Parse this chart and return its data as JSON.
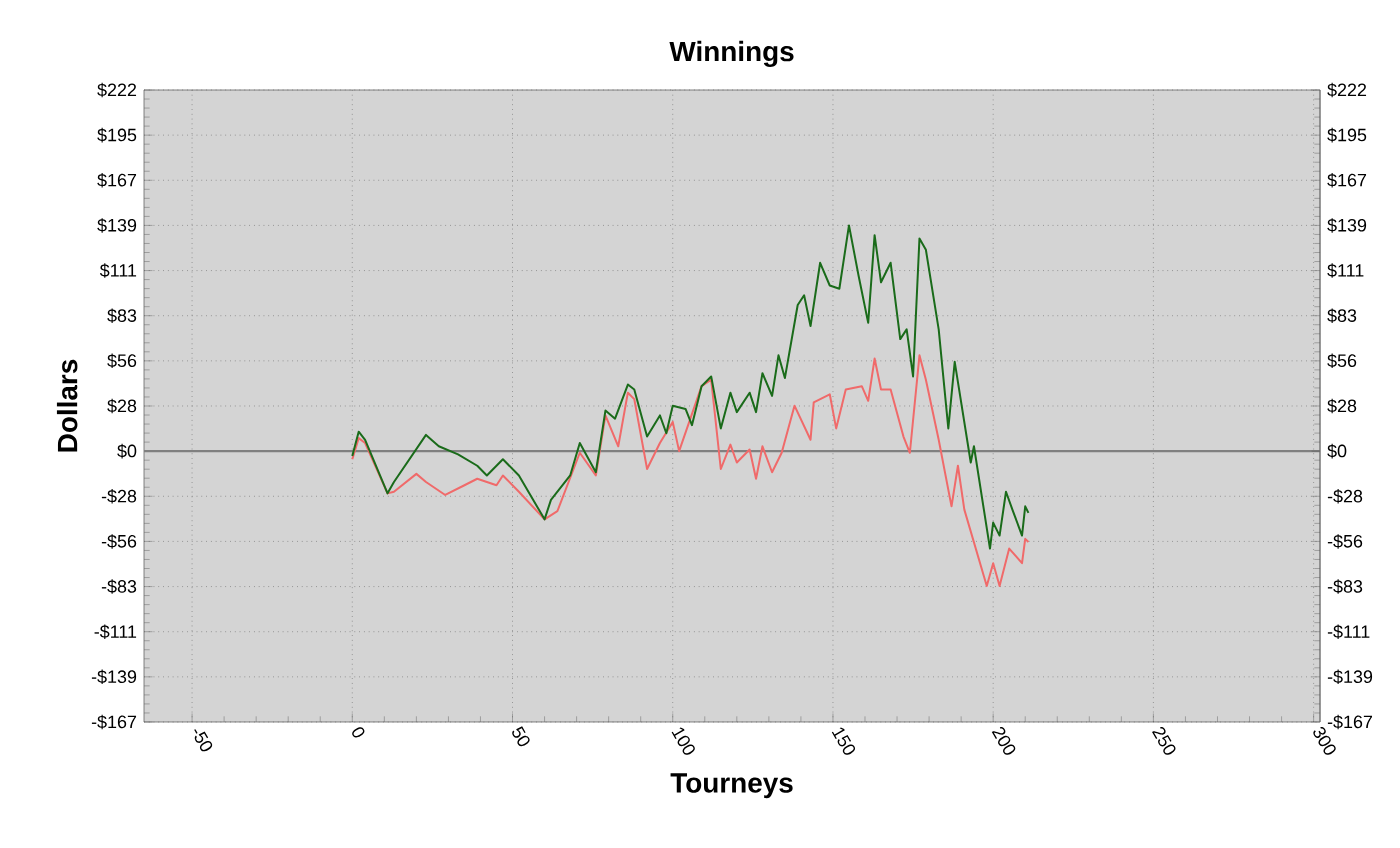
{
  "chart_data": {
    "type": "line",
    "title": "Winnings",
    "xlabel": "Tourneys",
    "ylabel": "Dollars",
    "xlim": [
      -65,
      302
    ],
    "xticks": [
      -50,
      0,
      50,
      100,
      150,
      200,
      250,
      300
    ],
    "ylim": [
      -166.8,
      222.4
    ],
    "yticks": [
      {
        "value": -166.8,
        "label": "-$167"
      },
      {
        "value": -139,
        "label": "-$139"
      },
      {
        "value": -111.2,
        "label": "-$111"
      },
      {
        "value": -83.4,
        "label": "-$83"
      },
      {
        "value": -55.6,
        "label": "-$56"
      },
      {
        "value": -27.8,
        "label": "-$28"
      },
      {
        "value": 0,
        "label": "$0"
      },
      {
        "value": 27.8,
        "label": "$28"
      },
      {
        "value": 55.6,
        "label": "$56"
      },
      {
        "value": 83.4,
        "label": "$83"
      },
      {
        "value": 111.2,
        "label": "$111"
      },
      {
        "value": 139,
        "label": "$139"
      },
      {
        "value": 166.8,
        "label": "$167"
      },
      {
        "value": 194.6,
        "label": "$195"
      },
      {
        "value": 222.4,
        "label": "$222"
      }
    ],
    "y2lim": [
      -166.8,
      222.4
    ],
    "y2ticks": [
      {
        "value": -166.8,
        "label": "-$167"
      },
      {
        "value": -139,
        "label": "-$139"
      },
      {
        "value": -111.2,
        "label": "-$111"
      },
      {
        "value": -83.4,
        "label": "-$83"
      },
      {
        "value": -55.6,
        "label": "-$56"
      },
      {
        "value": -27.8,
        "label": "-$28"
      },
      {
        "value": 0,
        "label": "$0"
      },
      {
        "value": 27.8,
        "label": "$28"
      },
      {
        "value": 55.6,
        "label": "$56"
      },
      {
        "value": 83.4,
        "label": "$83"
      },
      {
        "value": 111.2,
        "label": "$111"
      },
      {
        "value": 139,
        "label": "$139"
      },
      {
        "value": 166.8,
        "label": "$167"
      },
      {
        "value": 194.6,
        "label": "$195"
      },
      {
        "value": 222.4,
        "label": "$222"
      }
    ],
    "grid": true,
    "marker": "none",
    "line_style": "solid",
    "ref_lines": [
      {
        "axis": "y",
        "value": 0,
        "color": "#808080"
      }
    ],
    "series": [
      {
        "color": "#f06a6a",
        "x": [
          0,
          2,
          4,
          11,
          13,
          20,
          23,
          29,
          35,
          39,
          45,
          47,
          52,
          60,
          64,
          71,
          76,
          79,
          83,
          86,
          88,
          92,
          96,
          100,
          102,
          109,
          112,
          115,
          118,
          120,
          124,
          126,
          128,
          131,
          134,
          138,
          143,
          144,
          149,
          151,
          154,
          159,
          161,
          163,
          165,
          168,
          172,
          174,
          177,
          179,
          183,
          187,
          189,
          191,
          198,
          200,
          202,
          205,
          209,
          210,
          211
        ],
        "values": [
          -5,
          8,
          5,
          -26,
          -25,
          -14,
          -19,
          -27,
          -21,
          -17,
          -21,
          -15,
          -25,
          -42,
          -37,
          -1,
          -15,
          22,
          3,
          36,
          32,
          -11,
          5,
          18,
          0,
          40,
          44,
          -11,
          4,
          -7,
          1,
          -17,
          3,
          -13,
          -1,
          28,
          7,
          30,
          35,
          14,
          38,
          40,
          31,
          57,
          38,
          38,
          9,
          -1,
          59,
          44,
          7,
          -34,
          -9,
          -36,
          -83,
          -69,
          -83,
          -60,
          -69,
          -54,
          -56
        ]
      },
      {
        "color": "#1a6b1a",
        "x": [
          0,
          2,
          4,
          11,
          13,
          23,
          27,
          33,
          39,
          42,
          47,
          52,
          60,
          62,
          68,
          71,
          76,
          79,
          82,
          86,
          88,
          92,
          96,
          98,
          100,
          104,
          106,
          109,
          112,
          115,
          118,
          120,
          124,
          126,
          128,
          131,
          133,
          135,
          139,
          141,
          143,
          146,
          149,
          152,
          155,
          158,
          161,
          163,
          165,
          168,
          171,
          173,
          175,
          177,
          179,
          183,
          186,
          188,
          193,
          194,
          199,
          200,
          202,
          204,
          206,
          209,
          210,
          211
        ],
        "values": [
          -3,
          12,
          7,
          -26,
          -19,
          10,
          3,
          -2,
          -9,
          -15,
          -5,
          -15,
          -42,
          -30,
          -15,
          5,
          -13,
          25,
          20,
          41,
          38,
          9,
          22,
          11,
          28,
          26,
          16,
          40,
          46,
          14,
          36,
          24,
          36,
          24,
          48,
          34,
          59,
          45,
          90,
          96,
          77,
          116,
          102,
          100,
          139,
          108,
          79,
          133,
          104,
          116,
          69,
          75,
          46,
          131,
          124,
          75,
          14,
          55,
          -7,
          3,
          -60,
          -44,
          -52,
          -25,
          -36,
          -52,
          -34,
          -38
        ]
      }
    ]
  }
}
